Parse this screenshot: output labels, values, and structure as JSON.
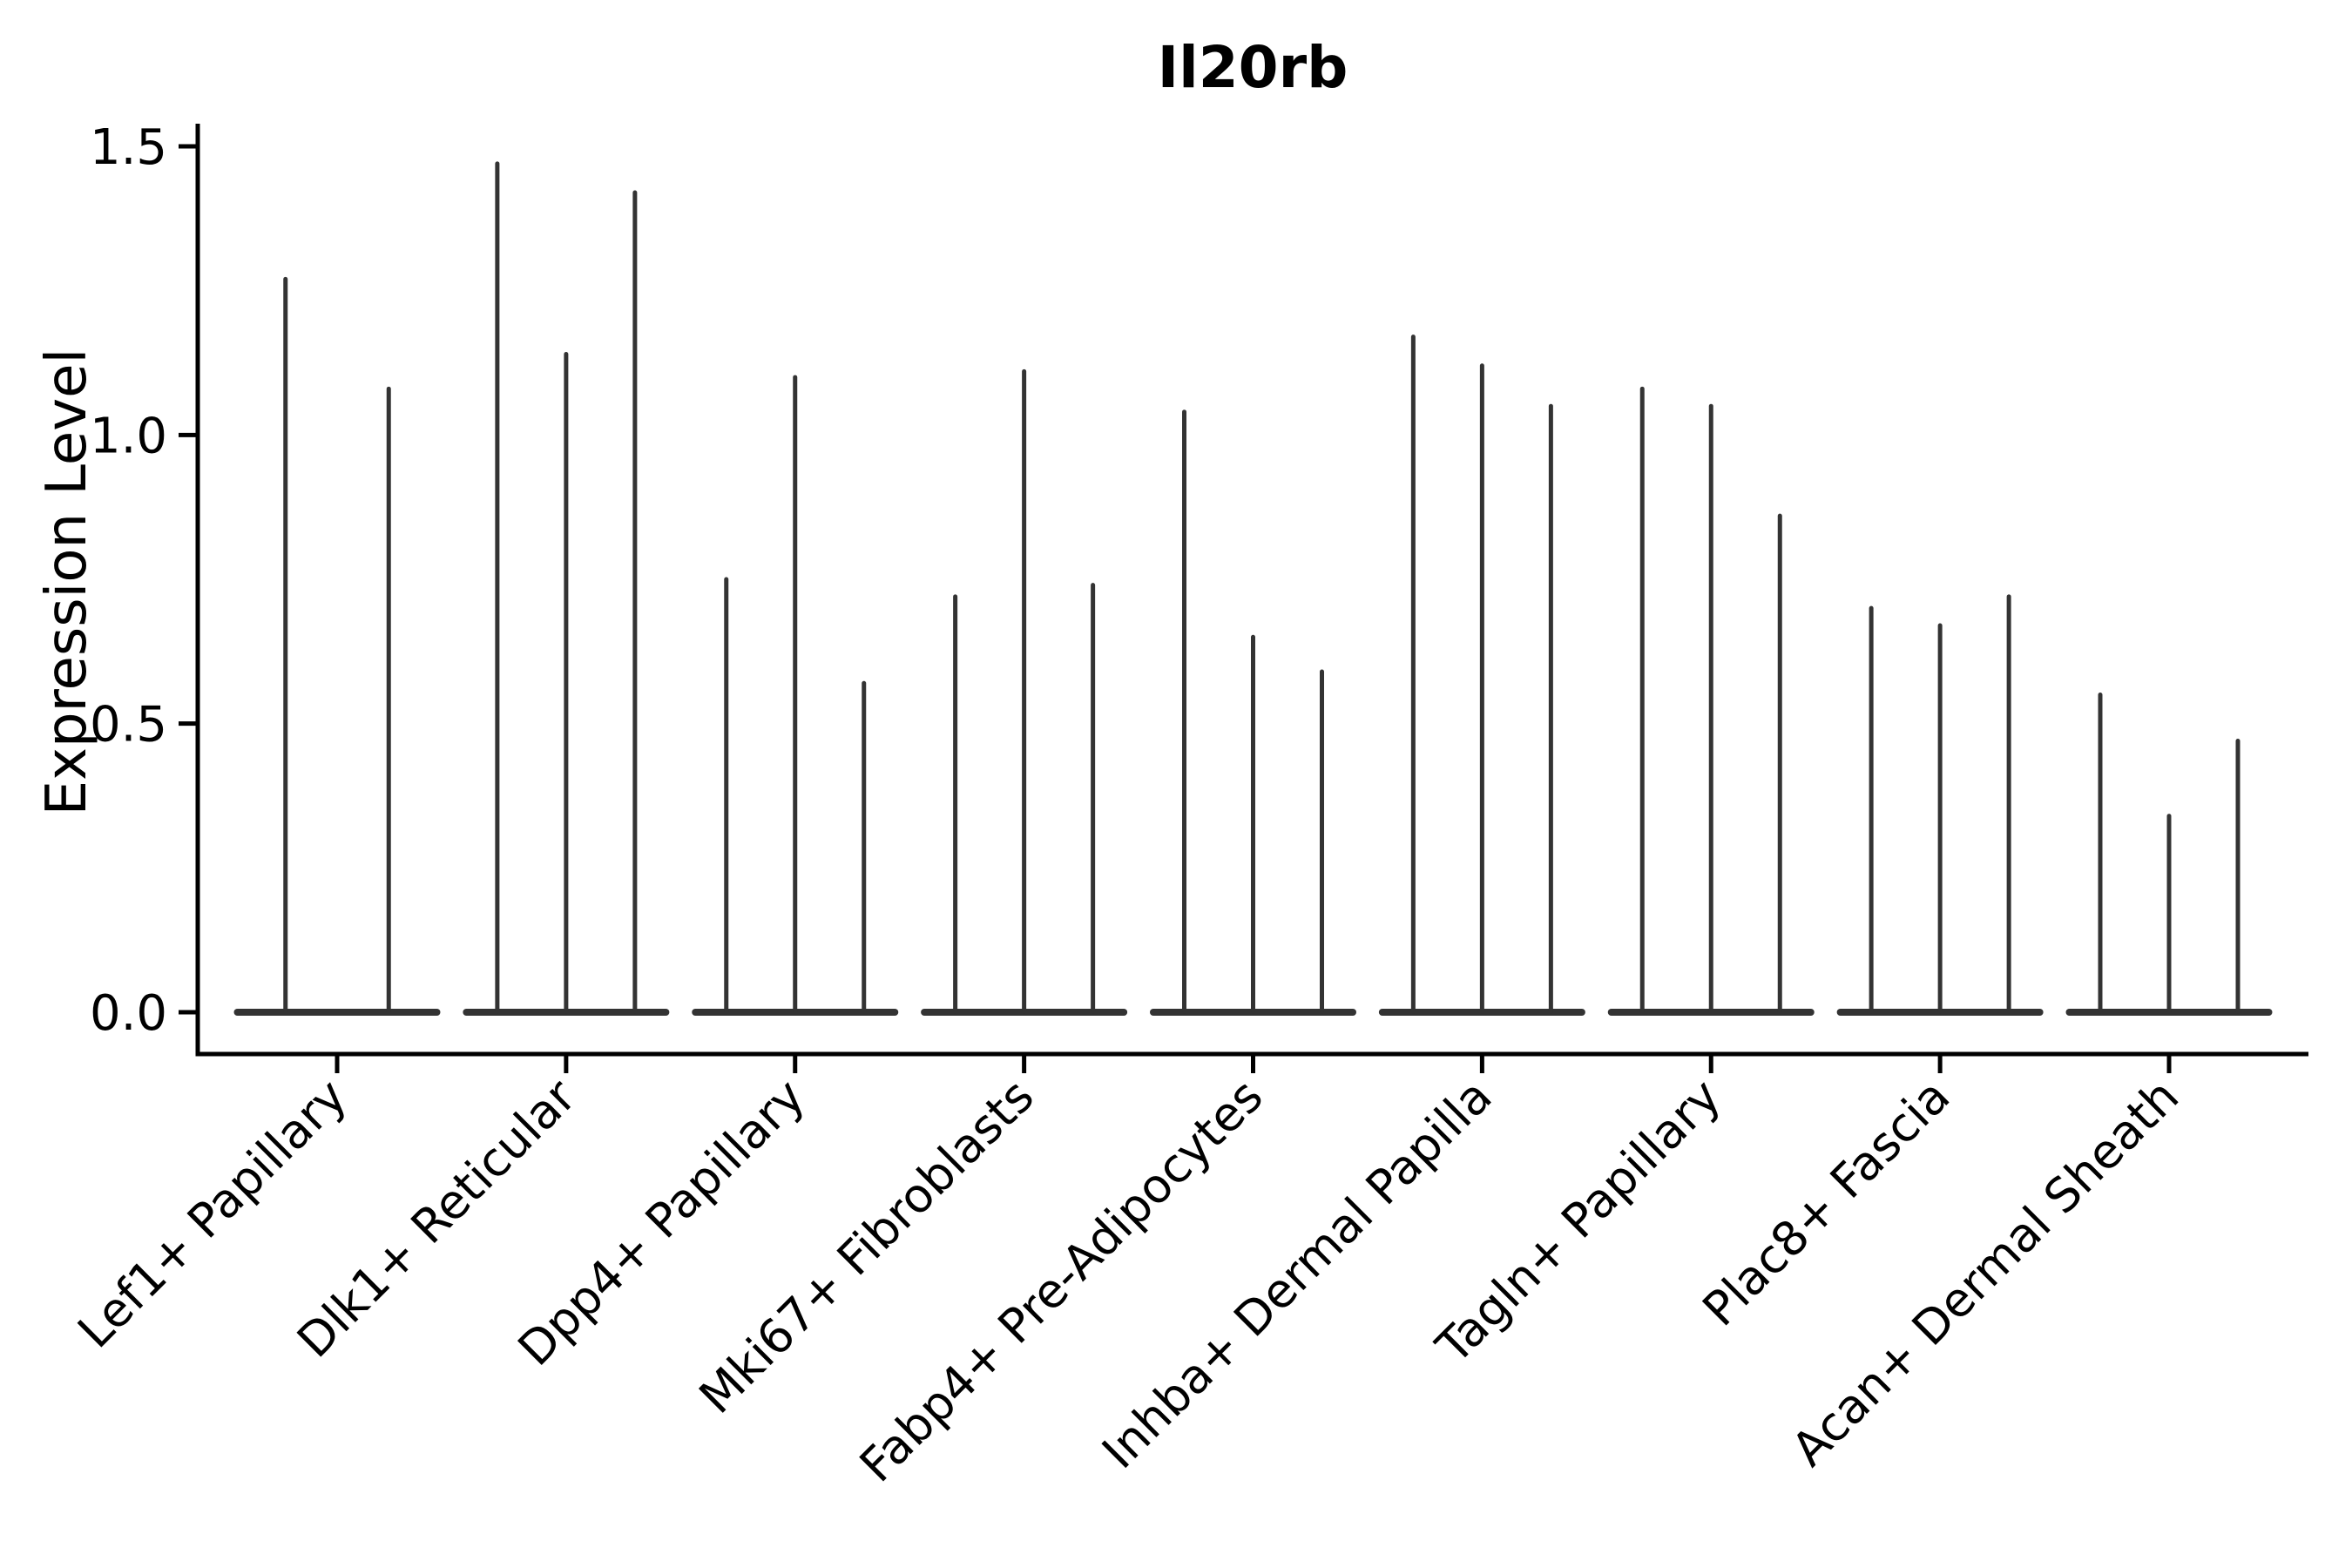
{
  "chart_data": {
    "type": "violin",
    "title": "Il20rb",
    "xlabel": "",
    "ylabel": "Expression Level",
    "ylim": [
      -0.07,
      1.54
    ],
    "ytick_labels": [
      "0.0",
      "0.5",
      "1.0",
      "1.5"
    ],
    "ytick_values": [
      0.0,
      0.5,
      1.0,
      1.5
    ],
    "grid": false,
    "legend": "none",
    "categories": [
      "Lef1+ Papillary",
      "Dlk1+ Reticular",
      "Dpp4+ Papillary",
      "Mki67+ Fibroblasts",
      "Fabp4+ Pre-Adipocytes",
      "Inhba+ Dermal Papilla",
      "Tagln+ Papillary",
      "Plac8+ Fascia",
      "Acan+ Dermal Sheath"
    ],
    "series": [
      {
        "category": "Lef1+ Papillary",
        "violin_peaks": [
          1.27,
          1.08
        ]
      },
      {
        "category": "Dlk1+ Reticular",
        "violin_peaks": [
          1.47,
          1.14,
          1.42
        ]
      },
      {
        "category": "Dpp4+ Papillary",
        "violin_peaks": [
          0.75,
          1.1,
          0.57
        ]
      },
      {
        "category": "Mki67+ Fibroblasts",
        "violin_peaks": [
          0.72,
          1.11,
          0.74
        ]
      },
      {
        "category": "Fabp4+ Pre-Adipocytes",
        "violin_peaks": [
          1.04,
          0.65,
          0.59
        ]
      },
      {
        "category": "Inhba+ Dermal Papilla",
        "violin_peaks": [
          1.17,
          1.12,
          1.05
        ]
      },
      {
        "category": "Tagln+ Papillary",
        "violin_peaks": [
          1.08,
          1.05,
          0.86
        ]
      },
      {
        "category": "Plac8+ Fascia",
        "violin_peaks": [
          0.7,
          0.67,
          0.72
        ]
      },
      {
        "category": "Acan+ Dermal Sheath",
        "violin_peaks": [
          0.55,
          0.34,
          0.47
        ]
      }
    ],
    "violin_shape_note": "each violin collapses to a thin vertical spike from 0 up to its peak with a wide flat base at expression 0",
    "colors": {
      "violin": "#333333",
      "axis": "#000000",
      "text": "#000000",
      "background": "#ffffff"
    }
  }
}
